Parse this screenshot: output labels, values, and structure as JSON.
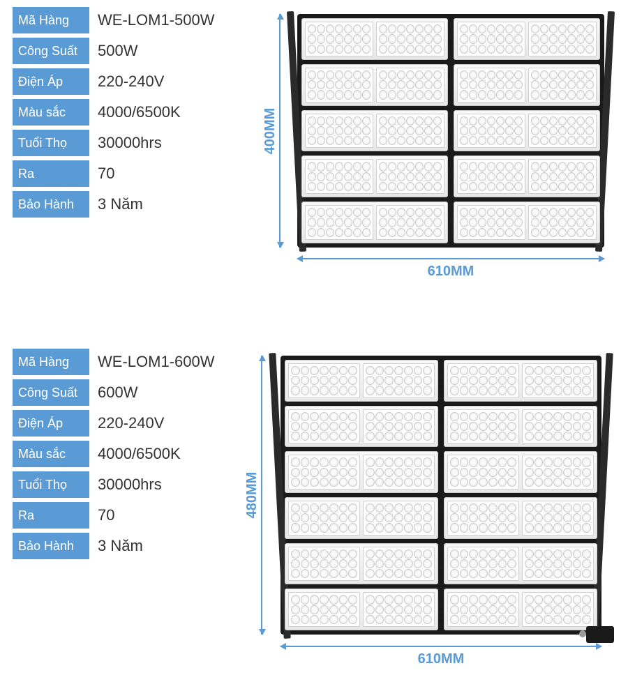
{
  "colors": {
    "label_bg": "#5B9BD5",
    "label_text": "#ffffff",
    "value_text": "#333333",
    "dimension": "#5B9BD5",
    "housing": "#1a1a1a",
    "module_bg": "#f0f0f0"
  },
  "typography": {
    "label_fontsize": 18,
    "value_fontsize": 22,
    "dimension_fontsize": 20
  },
  "spec_labels": {
    "code": "Mã Hàng",
    "power": "Công Suất",
    "voltage": "Điện Áp",
    "color": "Màu sắc",
    "life": "Tuổi Thọ",
    "ra": "Ra",
    "warranty": "Bảo Hành"
  },
  "products": [
    {
      "code": "WE-LOM1-500W",
      "power": "500W",
      "voltage": "220-240V",
      "color": "4000/6500K",
      "life": "30000hrs",
      "ra": "70",
      "warranty": "3 Năm",
      "height_label": "400MM",
      "width_label": "610MM",
      "module_rows": 5
    },
    {
      "code": "WE-LOM1-600W",
      "power": "600W",
      "voltage": "220-240V",
      "color": "4000/6500K",
      "life": "30000hrs",
      "ra": "70",
      "warranty": "3 Năm",
      "height_label": "480MM",
      "width_label": "610MM",
      "module_rows": 6
    }
  ]
}
